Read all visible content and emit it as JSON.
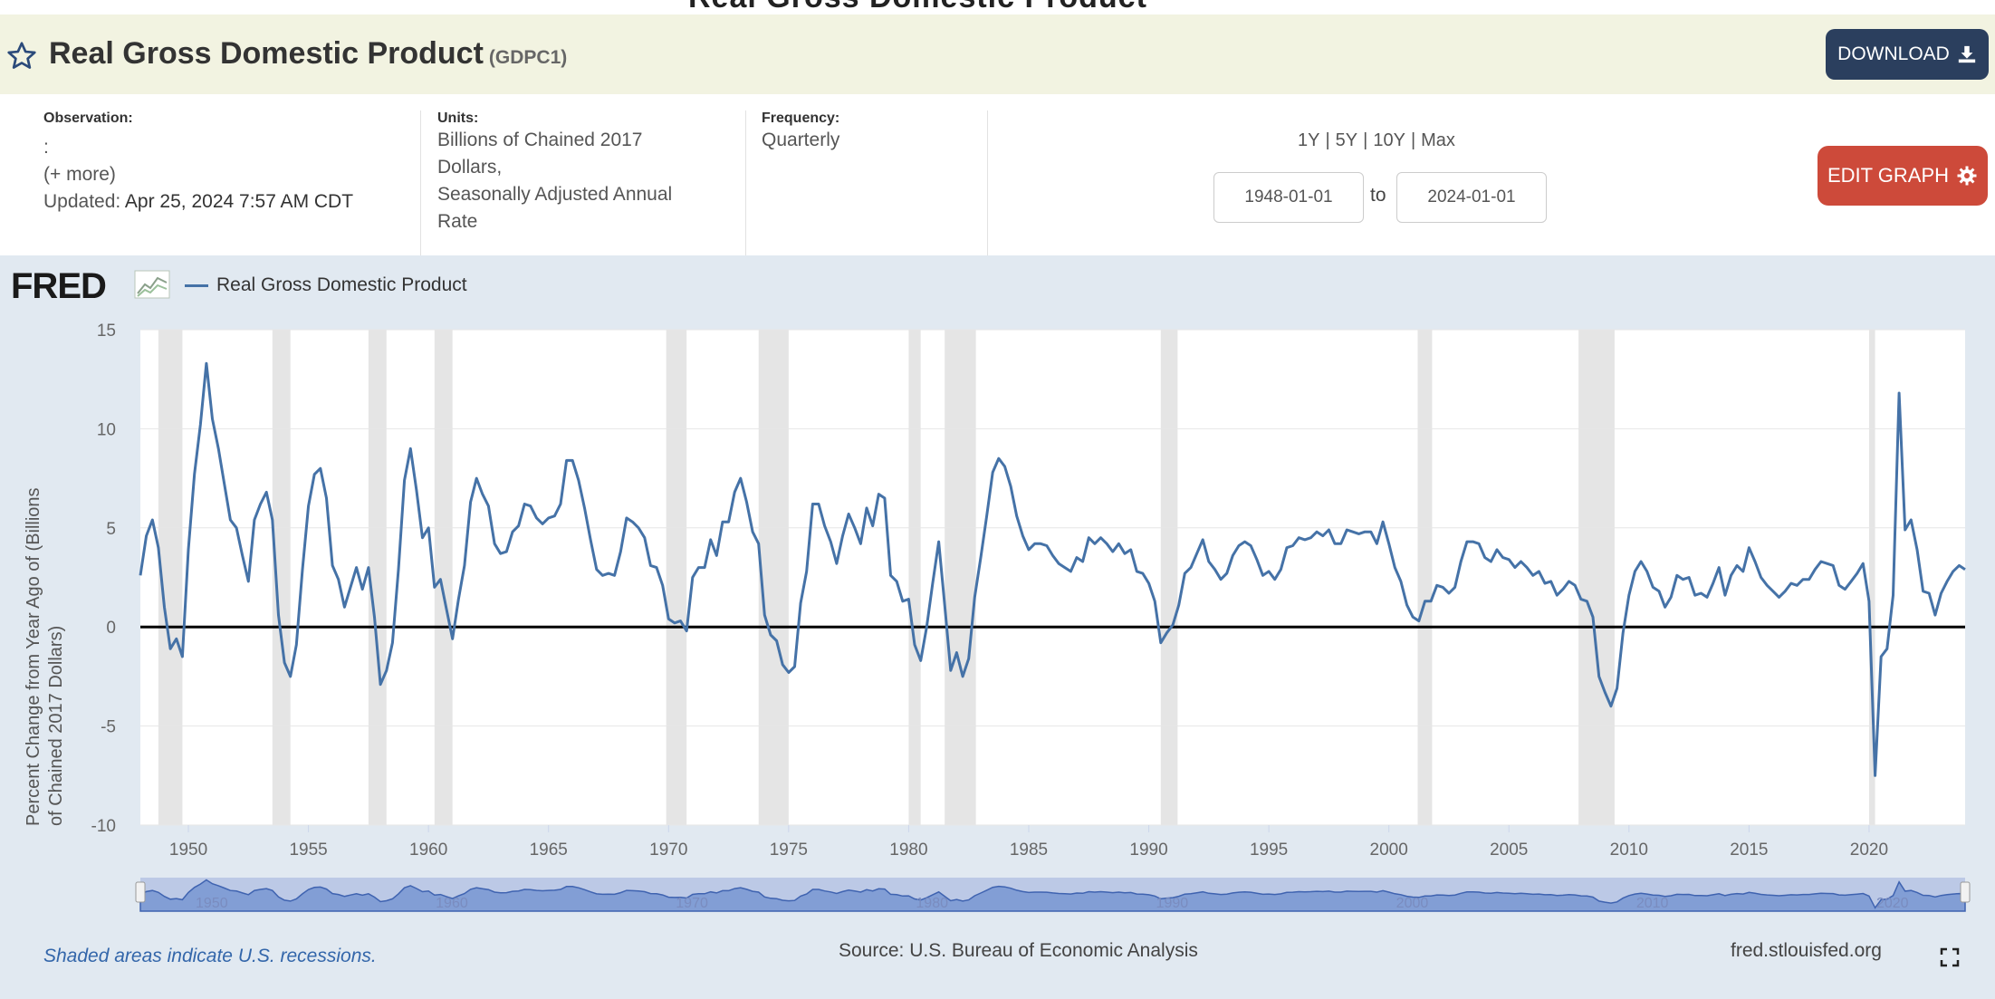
{
  "header": {
    "title": "Real Gross Domestic Product",
    "series_id": "(GDPC1)",
    "download_label": "DOWNLOAD"
  },
  "meta": {
    "observation_label": "Observation:",
    "observation_value": ":",
    "more_label": "(+ more)",
    "updated_label": "Updated:",
    "updated_value": "Apr 25, 2024 7:57 AM CDT",
    "units_label": "Units:",
    "units_lines": [
      "Billions of Chained 2017",
      "Dollars,",
      "Seasonally Adjusted Annual",
      "Rate"
    ],
    "frequency_label": "Frequency:",
    "frequency_value": "Quarterly"
  },
  "range": {
    "links": [
      "1Y",
      "5Y",
      "10Y",
      "Max"
    ],
    "separator": "|",
    "start": "1948-01-01",
    "end": "2024-01-01",
    "to_label": "to"
  },
  "edit_label": "EDIT GRAPH",
  "icons": {
    "favorite": "star-icon",
    "download": "download-icon",
    "edit": "gear-icon",
    "fullscreen": "fullscreen-icon"
  },
  "colors": {
    "series": "#4572a7",
    "recession": "#e5e5e5",
    "download_btn": "#2b3f5e",
    "edit_btn": "#cd4a3a",
    "title_bg": "#f2f3e1",
    "panel_bg": "#e1e9f1"
  },
  "fred_logo": "FRED",
  "footer": {
    "note": "Shaded areas indicate U.S. recessions.",
    "source": "Source: U.S. Bureau of Economic Analysis",
    "site": "fred.stlouisfed.org"
  },
  "chart_data": {
    "type": "line",
    "title": "",
    "legend": [
      "Real Gross Domestic Product"
    ],
    "legend_position": "top-left",
    "xlabel": "",
    "ylabel": "Percent Change from Year Ago of (Billions of Chained 2017 Dollars)",
    "xlim": [
      1948.0,
      2024.0
    ],
    "ylim": [
      -10,
      15
    ],
    "yticks": [
      15,
      10,
      5,
      0,
      -5,
      -10
    ],
    "xticks": [
      1950,
      1955,
      1960,
      1965,
      1970,
      1975,
      1980,
      1985,
      1990,
      1995,
      2000,
      2005,
      2010,
      2015,
      2020
    ],
    "grid": true,
    "zero_line": true,
    "recessions": [
      [
        1948.75,
        1949.75
      ],
      [
        1953.5,
        1954.25
      ],
      [
        1957.5,
        1958.25
      ],
      [
        1960.25,
        1961.0
      ],
      [
        1969.9,
        1970.75
      ],
      [
        1973.75,
        1975.0
      ],
      [
        1980.0,
        1980.5
      ],
      [
        1981.5,
        1982.8
      ],
      [
        1990.5,
        1991.2
      ],
      [
        2001.2,
        2001.8
      ],
      [
        2007.9,
        2009.4
      ],
      [
        2020.0,
        2020.25
      ]
    ],
    "series": [
      {
        "name": "Real Gross Domestic Product",
        "x": [
          1948.0,
          1948.25,
          1948.5,
          1948.75,
          1949.0,
          1949.25,
          1949.5,
          1949.75,
          1950.0,
          1950.25,
          1950.5,
          1950.75,
          1951.0,
          1951.25,
          1951.5,
          1951.75,
          1952.0,
          1952.25,
          1952.5,
          1952.75,
          1953.0,
          1953.25,
          1953.5,
          1953.75,
          1954.0,
          1954.25,
          1954.5,
          1954.75,
          1955.0,
          1955.25,
          1955.5,
          1955.75,
          1956.0,
          1956.25,
          1956.5,
          1956.75,
          1957.0,
          1957.25,
          1957.5,
          1957.75,
          1958.0,
          1958.25,
          1958.5,
          1958.75,
          1959.0,
          1959.25,
          1959.5,
          1959.75,
          1960.0,
          1960.25,
          1960.5,
          1960.75,
          1961.0,
          1961.25,
          1961.5,
          1961.75,
          1962.0,
          1962.25,
          1962.5,
          1962.75,
          1963.0,
          1963.25,
          1963.5,
          1963.75,
          1964.0,
          1964.25,
          1964.5,
          1964.75,
          1965.0,
          1965.25,
          1965.5,
          1965.75,
          1966.0,
          1966.25,
          1966.5,
          1966.75,
          1967.0,
          1967.25,
          1967.5,
          1967.75,
          1968.0,
          1968.25,
          1968.5,
          1968.75,
          1969.0,
          1969.25,
          1969.5,
          1969.75,
          1970.0,
          1970.25,
          1970.5,
          1970.75,
          1971.0,
          1971.25,
          1971.5,
          1971.75,
          1972.0,
          1972.25,
          1972.5,
          1972.75,
          1973.0,
          1973.25,
          1973.5,
          1973.75,
          1974.0,
          1974.25,
          1974.5,
          1974.75,
          1975.0,
          1975.25,
          1975.5,
          1975.75,
          1976.0,
          1976.25,
          1976.5,
          1976.75,
          1977.0,
          1977.25,
          1977.5,
          1977.75,
          1978.0,
          1978.25,
          1978.5,
          1978.75,
          1979.0,
          1979.25,
          1979.5,
          1979.75,
          1980.0,
          1980.25,
          1980.5,
          1980.75,
          1981.0,
          1981.25,
          1981.5,
          1981.75,
          1982.0,
          1982.25,
          1982.5,
          1982.75,
          1983.0,
          1983.25,
          1983.5,
          1983.75,
          1984.0,
          1984.25,
          1984.5,
          1984.75,
          1985.0,
          1985.25,
          1985.5,
          1985.75,
          1986.0,
          1986.25,
          1986.5,
          1986.75,
          1987.0,
          1987.25,
          1987.5,
          1987.75,
          1988.0,
          1988.25,
          1988.5,
          1988.75,
          1989.0,
          1989.25,
          1989.5,
          1989.75,
          1990.0,
          1990.25,
          1990.5,
          1990.75,
          1991.0,
          1991.25,
          1991.5,
          1991.75,
          1992.0,
          1992.25,
          1992.5,
          1992.75,
          1993.0,
          1993.25,
          1993.5,
          1993.75,
          1994.0,
          1994.25,
          1994.5,
          1994.75,
          1995.0,
          1995.25,
          1995.5,
          1995.75,
          1996.0,
          1996.25,
          1996.5,
          1996.75,
          1997.0,
          1997.25,
          1997.5,
          1997.75,
          1998.0,
          1998.25,
          1998.5,
          1998.75,
          1999.0,
          1999.25,
          1999.5,
          1999.75,
          2000.0,
          2000.25,
          2000.5,
          2000.75,
          2001.0,
          2001.25,
          2001.5,
          2001.75,
          2002.0,
          2002.25,
          2002.5,
          2002.75,
          2003.0,
          2003.25,
          2003.5,
          2003.75,
          2004.0,
          2004.25,
          2004.5,
          2004.75,
          2005.0,
          2005.25,
          2005.5,
          2005.75,
          2006.0,
          2006.25,
          2006.5,
          2006.75,
          2007.0,
          2007.25,
          2007.5,
          2007.75,
          2008.0,
          2008.25,
          2008.5,
          2008.75,
          2009.0,
          2009.25,
          2009.5,
          2009.75,
          2010.0,
          2010.25,
          2010.5,
          2010.75,
          2011.0,
          2011.25,
          2011.5,
          2011.75,
          2012.0,
          2012.25,
          2012.5,
          2012.75,
          2013.0,
          2013.25,
          2013.5,
          2013.75,
          2014.0,
          2014.25,
          2014.5,
          2014.75,
          2015.0,
          2015.25,
          2015.5,
          2015.75,
          2016.0,
          2016.25,
          2016.5,
          2016.75,
          2017.0,
          2017.25,
          2017.5,
          2017.75,
          2018.0,
          2018.25,
          2018.5,
          2018.75,
          2019.0,
          2019.25,
          2019.5,
          2019.75,
          2020.0,
          2020.25,
          2020.5,
          2020.75,
          2021.0,
          2021.25,
          2021.5,
          2021.75,
          2022.0,
          2022.25,
          2022.5,
          2022.75,
          2023.0,
          2023.25,
          2023.5,
          2023.75,
          2024.0
        ],
        "values": [
          2.6,
          4.6,
          5.4,
          4.0,
          1.0,
          -1.1,
          -0.6,
          -1.5,
          3.9,
          7.7,
          10.2,
          13.3,
          10.5,
          9.0,
          7.2,
          5.4,
          5.0,
          3.6,
          2.3,
          5.4,
          6.2,
          6.8,
          5.4,
          0.6,
          -1.8,
          -2.5,
          -0.9,
          2.9,
          6.1,
          7.7,
          8.0,
          6.5,
          3.1,
          2.4,
          1.0,
          2.0,
          3.0,
          1.9,
          3.0,
          0.5,
          -2.9,
          -2.2,
          -0.8,
          2.9,
          7.4,
          9.0,
          6.9,
          4.5,
          5.0,
          2.0,
          2.4,
          0.9,
          -0.6,
          1.4,
          3.1,
          6.3,
          7.5,
          6.7,
          6.1,
          4.2,
          3.7,
          3.8,
          4.8,
          5.1,
          6.2,
          6.1,
          5.5,
          5.2,
          5.5,
          5.6,
          6.2,
          8.4,
          8.4,
          7.4,
          6.0,
          4.4,
          2.9,
          2.6,
          2.7,
          2.6,
          3.8,
          5.5,
          5.3,
          5.0,
          4.5,
          3.1,
          3.0,
          2.1,
          0.4,
          0.2,
          0.3,
          -0.2,
          2.5,
          3.0,
          3.0,
          4.4,
          3.6,
          5.3,
          5.3,
          6.8,
          7.5,
          6.3,
          4.8,
          4.2,
          0.6,
          -0.4,
          -0.7,
          -1.9,
          -2.3,
          -2.0,
          1.2,
          2.8,
          6.2,
          6.2,
          5.1,
          4.3,
          3.2,
          4.6,
          5.7,
          5.0,
          4.2,
          6.0,
          5.1,
          6.7,
          6.5,
          2.6,
          2.3,
          1.3,
          1.4,
          -0.9,
          -1.7,
          0.0,
          2.2,
          4.3,
          1.1,
          -2.2,
          -1.3,
          -2.5,
          -1.6,
          1.5,
          3.5,
          5.6,
          7.8,
          8.5,
          8.1,
          7.1,
          5.6,
          4.6,
          3.9,
          4.2,
          4.2,
          4.1,
          3.6,
          3.2,
          3.0,
          2.8,
          3.5,
          3.3,
          4.5,
          4.2,
          4.5,
          4.2,
          3.8,
          4.2,
          3.7,
          3.9,
          2.8,
          2.7,
          2.2,
          1.3,
          -0.8,
          -0.3,
          0.1,
          1.1,
          2.7,
          3.0,
          3.7,
          4.4,
          3.3,
          2.9,
          2.4,
          2.7,
          3.6,
          4.1,
          4.3,
          4.1,
          3.4,
          2.6,
          2.8,
          2.4,
          2.9,
          4.0,
          4.1,
          4.5,
          4.4,
          4.5,
          4.8,
          4.6,
          4.9,
          4.2,
          4.2,
          4.9,
          4.8,
          4.7,
          4.8,
          4.8,
          4.2,
          5.3,
          4.2,
          3.0,
          2.3,
          1.1,
          0.5,
          0.3,
          1.3,
          1.3,
          2.1,
          2.0,
          1.7,
          2.0,
          3.3,
          4.3,
          4.3,
          4.2,
          3.5,
          3.3,
          3.9,
          3.5,
          3.4,
          3.0,
          3.3,
          3.0,
          2.6,
          2.8,
          2.2,
          2.3,
          1.6,
          1.9,
          2.3,
          2.1,
          1.4,
          1.3,
          0.5,
          -2.5,
          -3.3,
          -4.0,
          -3.1,
          -0.3,
          1.6,
          2.8,
          3.3,
          2.8,
          2.0,
          1.8,
          1.0,
          1.5,
          2.6,
          2.4,
          2.5,
          1.6,
          1.7,
          1.5,
          2.2,
          3.0,
          1.6,
          2.6,
          3.1,
          2.8,
          4.0,
          3.3,
          2.5,
          2.1,
          1.8,
          1.5,
          1.8,
          2.2,
          2.1,
          2.4,
          2.4,
          2.9,
          3.3,
          3.2,
          3.1,
          2.1,
          1.9,
          2.3,
          2.7,
          3.2,
          1.3,
          -7.5,
          -1.5,
          -1.1,
          1.6,
          11.8,
          4.9,
          5.4,
          3.9,
          1.8,
          1.7,
          0.6,
          1.7,
          2.3,
          2.8,
          3.1,
          2.9
        ]
      }
    ]
  }
}
